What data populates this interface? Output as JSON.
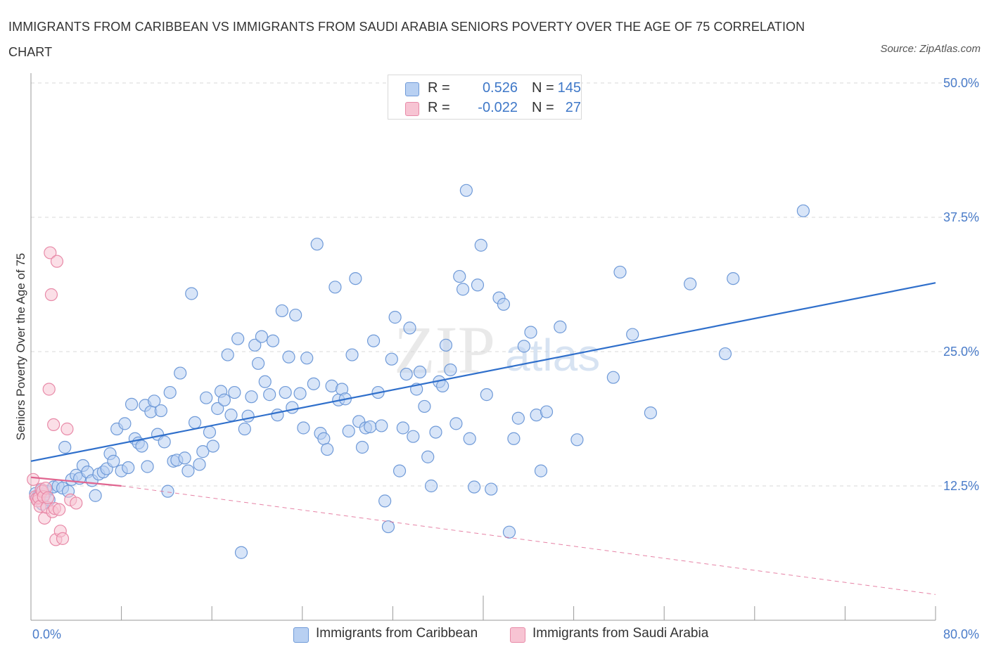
{
  "header": {
    "title": "IMMIGRANTS FROM CARIBBEAN VS IMMIGRANTS FROM SAUDI ARABIA SENIORS POVERTY OVER THE AGE OF 75 CORRELATION CHART",
    "source": "Source: ZipAtlas.com"
  },
  "legend_stats": {
    "r_label": "R =",
    "n_label": "N =",
    "rows": [
      {
        "r": "0.526",
        "n": "145"
      },
      {
        "r": "-0.022",
        "n": "27"
      }
    ]
  },
  "watermark": {
    "zip": "ZIP",
    "atlas": "atlas"
  },
  "colors": {
    "series1_fill": "#b8d0f2",
    "series1_stroke": "#6f9ad8",
    "series1_line": "#2f6fcb",
    "series2_fill": "#f7c4d3",
    "series2_stroke": "#e88aa8",
    "series2_line": "#e06590",
    "tick_text": "#4a7cc9",
    "grid": "#d9d9d9"
  },
  "chart_data": {
    "type": "scatter",
    "title": "IMMIGRANTS FROM CARIBBEAN VS IMMIGRANTS FROM SAUDI ARABIA SENIORS POVERTY OVER THE AGE OF 75 CORRELATION CHART",
    "xlabel": "",
    "ylabel": "Seniors Poverty Over the Age of 75",
    "xlim": [
      0,
      80
    ],
    "ylim": [
      0,
      50
    ],
    "x_tick_labels": [
      "0.0%",
      "80.0%"
    ],
    "y_tick_labels": [
      "12.5%",
      "25.0%",
      "37.5%",
      "50.0%"
    ],
    "y_ticks": [
      12.5,
      25.0,
      37.5,
      50.0
    ],
    "grid": true,
    "legend_position": "bottom",
    "series": [
      {
        "name": "Immigrants from Caribbean",
        "r": 0.526,
        "n": 145,
        "trend": {
          "x": [
            0,
            80
          ],
          "y": [
            14.8,
            31.4
          ],
          "style": "solid"
        },
        "points": [
          [
            0.4,
            11.8
          ],
          [
            0.6,
            11.5
          ],
          [
            0.8,
            11.6
          ],
          [
            0.9,
            12.1
          ],
          [
            1.0,
            10.8
          ],
          [
            1.2,
            11.7
          ],
          [
            1.4,
            12.0
          ],
          [
            1.6,
            11.2
          ],
          [
            2.0,
            12.4
          ],
          [
            2.4,
            12.5
          ],
          [
            2.8,
            12.3
          ],
          [
            3.0,
            16.1
          ],
          [
            3.3,
            12.0
          ],
          [
            3.6,
            13.1
          ],
          [
            4.0,
            13.5
          ],
          [
            4.3,
            13.2
          ],
          [
            4.6,
            14.4
          ],
          [
            5.0,
            13.8
          ],
          [
            5.4,
            13.0
          ],
          [
            5.7,
            11.6
          ],
          [
            6.0,
            13.6
          ],
          [
            6.4,
            13.8
          ],
          [
            6.7,
            14.1
          ],
          [
            7.0,
            15.5
          ],
          [
            7.3,
            14.8
          ],
          [
            7.6,
            17.8
          ],
          [
            8.0,
            13.9
          ],
          [
            8.3,
            18.3
          ],
          [
            8.6,
            14.2
          ],
          [
            8.9,
            20.1
          ],
          [
            9.2,
            16.9
          ],
          [
            9.5,
            16.5
          ],
          [
            9.8,
            16.2
          ],
          [
            10.1,
            20.0
          ],
          [
            10.3,
            14.3
          ],
          [
            10.6,
            19.4
          ],
          [
            10.9,
            20.4
          ],
          [
            11.2,
            17.3
          ],
          [
            11.5,
            19.5
          ],
          [
            11.8,
            16.6
          ],
          [
            12.1,
            12.0
          ],
          [
            12.3,
            21.2
          ],
          [
            12.6,
            14.8
          ],
          [
            12.9,
            14.9
          ],
          [
            13.2,
            23.0
          ],
          [
            13.6,
            15.1
          ],
          [
            13.9,
            13.9
          ],
          [
            14.2,
            30.4
          ],
          [
            14.5,
            18.4
          ],
          [
            14.9,
            14.5
          ],
          [
            15.2,
            15.7
          ],
          [
            15.5,
            20.7
          ],
          [
            15.8,
            17.5
          ],
          [
            16.1,
            16.2
          ],
          [
            16.5,
            19.7
          ],
          [
            16.8,
            21.3
          ],
          [
            17.1,
            20.5
          ],
          [
            17.4,
            24.7
          ],
          [
            17.7,
            19.1
          ],
          [
            18.0,
            21.2
          ],
          [
            18.3,
            26.2
          ],
          [
            18.6,
            6.3
          ],
          [
            18.9,
            17.8
          ],
          [
            19.2,
            19.0
          ],
          [
            19.5,
            20.8
          ],
          [
            19.8,
            25.6
          ],
          [
            20.1,
            23.9
          ],
          [
            20.4,
            26.4
          ],
          [
            20.7,
            22.2
          ],
          [
            21.1,
            21.0
          ],
          [
            21.4,
            26.0
          ],
          [
            21.8,
            19.1
          ],
          [
            22.2,
            28.8
          ],
          [
            22.5,
            21.2
          ],
          [
            22.8,
            24.5
          ],
          [
            23.1,
            19.8
          ],
          [
            23.4,
            28.4
          ],
          [
            23.8,
            21.1
          ],
          [
            24.1,
            17.9
          ],
          [
            24.4,
            24.4
          ],
          [
            25.0,
            22.0
          ],
          [
            25.3,
            35.0
          ],
          [
            25.6,
            17.4
          ],
          [
            25.9,
            16.9
          ],
          [
            26.2,
            15.9
          ],
          [
            26.6,
            21.8
          ],
          [
            26.9,
            31.0
          ],
          [
            27.2,
            20.5
          ],
          [
            27.5,
            21.5
          ],
          [
            27.8,
            20.6
          ],
          [
            28.1,
            17.6
          ],
          [
            28.4,
            24.7
          ],
          [
            28.7,
            31.8
          ],
          [
            29.0,
            18.5
          ],
          [
            29.3,
            16.1
          ],
          [
            29.6,
            17.9
          ],
          [
            30.0,
            18.0
          ],
          [
            30.3,
            26.0
          ],
          [
            30.7,
            21.2
          ],
          [
            31.0,
            18.1
          ],
          [
            31.3,
            11.1
          ],
          [
            31.6,
            8.7
          ],
          [
            31.9,
            24.3
          ],
          [
            32.2,
            28.2
          ],
          [
            32.6,
            13.9
          ],
          [
            32.9,
            17.9
          ],
          [
            33.2,
            22.9
          ],
          [
            33.5,
            27.2
          ],
          [
            33.8,
            17.1
          ],
          [
            34.1,
            21.5
          ],
          [
            34.4,
            23.1
          ],
          [
            34.8,
            19.9
          ],
          [
            35.1,
            15.2
          ],
          [
            35.4,
            12.5
          ],
          [
            35.8,
            17.5
          ],
          [
            36.1,
            22.2
          ],
          [
            36.4,
            21.8
          ],
          [
            36.7,
            25.6
          ],
          [
            37.1,
            23.3
          ],
          [
            37.6,
            18.3
          ],
          [
            37.9,
            32.0
          ],
          [
            38.2,
            30.8
          ],
          [
            38.5,
            40.0
          ],
          [
            38.8,
            16.9
          ],
          [
            39.2,
            12.4
          ],
          [
            39.5,
            31.2
          ],
          [
            39.8,
            34.9
          ],
          [
            40.3,
            21.0
          ],
          [
            40.7,
            12.2
          ],
          [
            41.4,
            30.0
          ],
          [
            41.8,
            29.4
          ],
          [
            42.3,
            8.2
          ],
          [
            42.7,
            16.9
          ],
          [
            43.1,
            18.8
          ],
          [
            43.6,
            25.5
          ],
          [
            44.2,
            26.8
          ],
          [
            44.7,
            19.1
          ],
          [
            45.1,
            13.9
          ],
          [
            45.6,
            19.4
          ],
          [
            46.8,
            27.3
          ],
          [
            48.3,
            16.8
          ],
          [
            51.5,
            22.6
          ],
          [
            52.1,
            32.4
          ],
          [
            53.2,
            26.6
          ],
          [
            54.8,
            19.3
          ],
          [
            58.3,
            31.3
          ],
          [
            61.4,
            24.8
          ],
          [
            62.1,
            31.8
          ],
          [
            68.3,
            38.1
          ]
        ]
      },
      {
        "name": "Immigrants from Saudi Arabia",
        "r": -0.022,
        "n": 27,
        "trend": {
          "x": [
            0,
            8.0
          ],
          "y": [
            13.3,
            12.5
          ],
          "style": "solid",
          "extension": {
            "x": [
              8.0,
              80
            ],
            "y": [
              12.5,
              2.4
            ],
            "style": "dashed"
          }
        },
        "points": [
          [
            0.2,
            13.1
          ],
          [
            0.4,
            11.5
          ],
          [
            0.5,
            11.3
          ],
          [
            0.6,
            11.1
          ],
          [
            0.7,
            11.4
          ],
          [
            0.8,
            10.6
          ],
          [
            0.9,
            12.2
          ],
          [
            1.0,
            12.0
          ],
          [
            1.1,
            11.5
          ],
          [
            1.2,
            9.5
          ],
          [
            1.3,
            12.3
          ],
          [
            1.4,
            10.5
          ],
          [
            1.5,
            11.4
          ],
          [
            1.6,
            21.5
          ],
          [
            1.7,
            34.2
          ],
          [
            1.8,
            30.3
          ],
          [
            1.9,
            10.1
          ],
          [
            2.0,
            18.2
          ],
          [
            2.1,
            10.4
          ],
          [
            2.2,
            7.5
          ],
          [
            2.3,
            33.4
          ],
          [
            2.5,
            10.3
          ],
          [
            2.6,
            8.3
          ],
          [
            2.8,
            7.6
          ],
          [
            3.2,
            17.8
          ],
          [
            3.5,
            11.2
          ],
          [
            4.0,
            10.9
          ]
        ]
      }
    ]
  }
}
